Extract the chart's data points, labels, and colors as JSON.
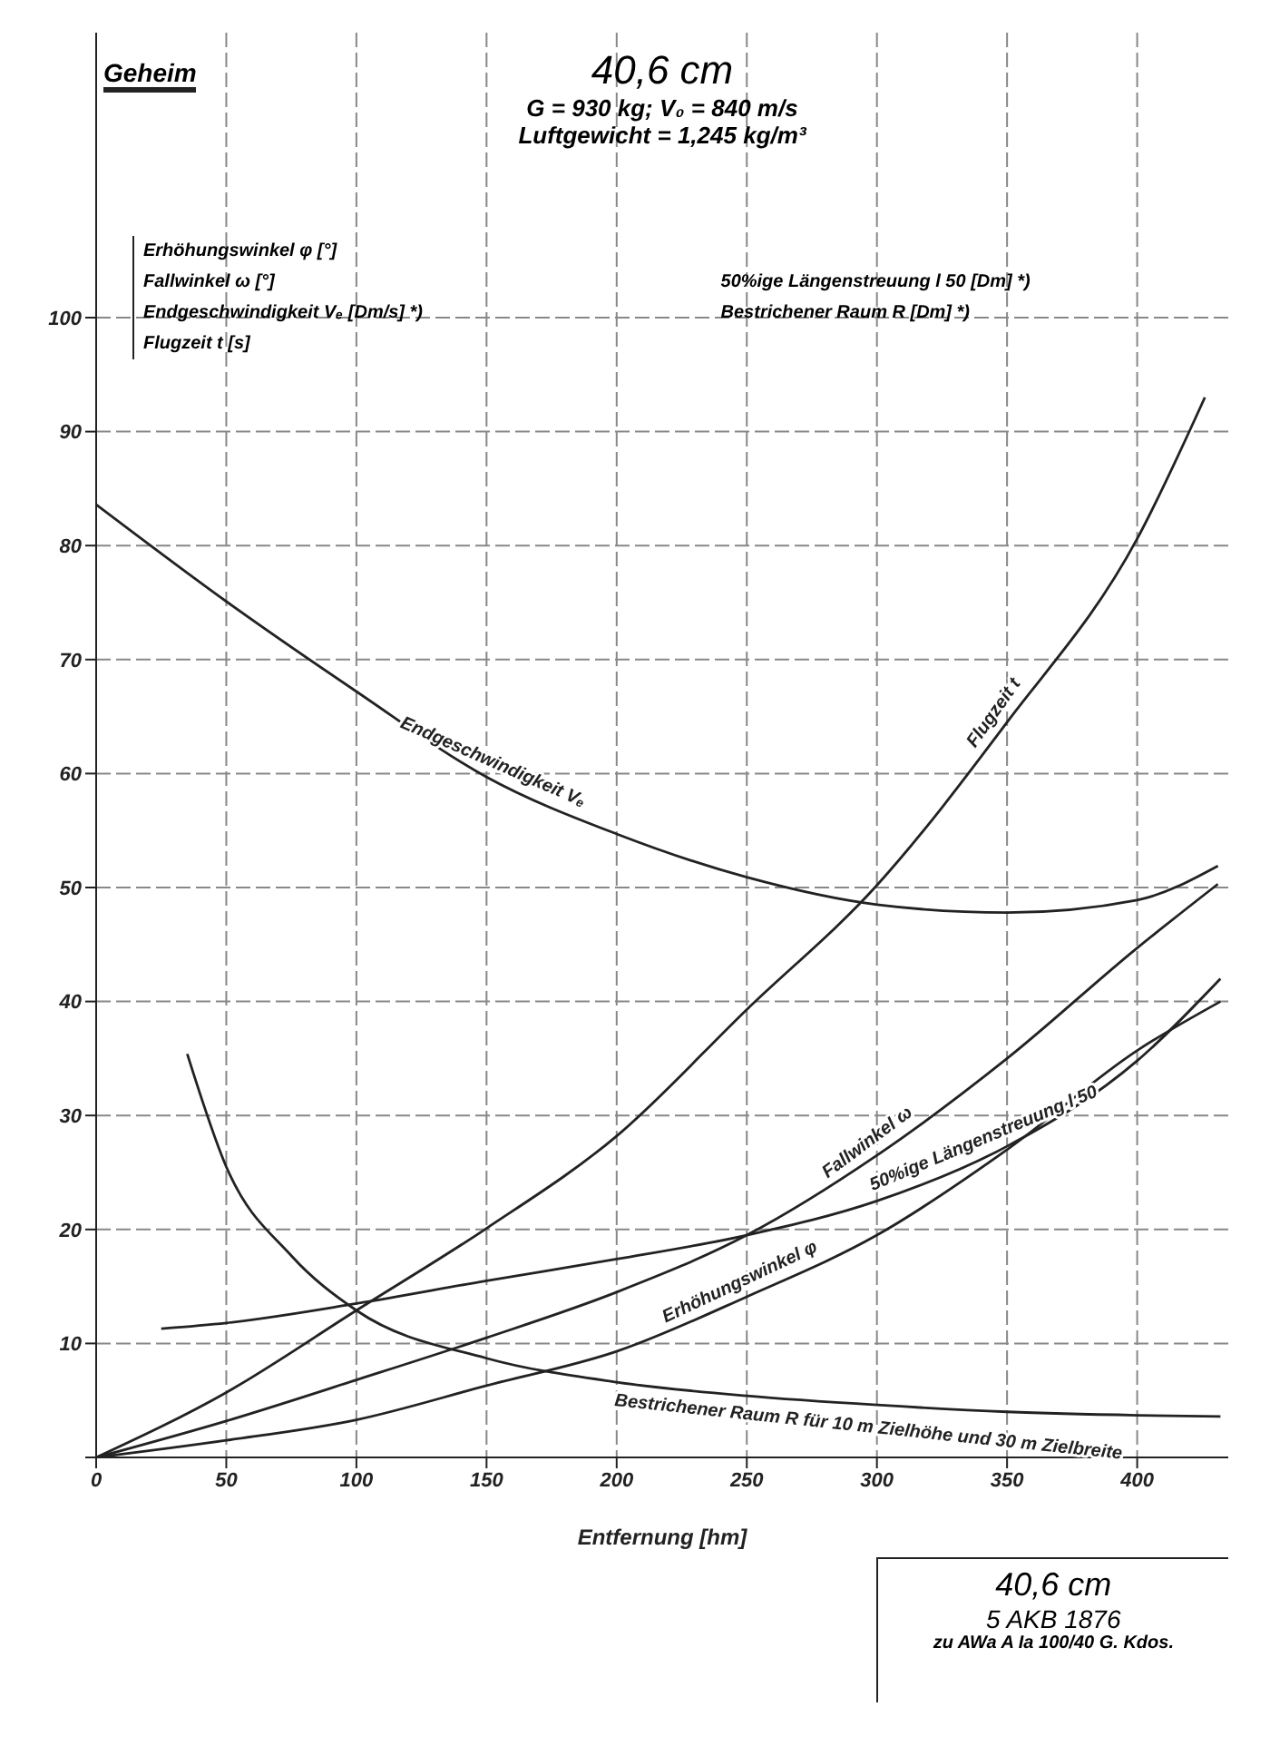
{
  "chart_data": {
    "type": "line",
    "title": "40,6 cm",
    "subtitle": "G = 930 kg; V₀ = 840 m/s\nLuftgewicht = 1,245 kg/m³",
    "xlabel": "Entfernung [hm]",
    "annotations": [
      "Geheim",
      "Erhöhungswinkel φ [°]",
      "Fallwinkel ω [°]",
      "Endgeschwindigkeit Vₑ [Dm/s] *)",
      "Flugzeit t [s]",
      "50%ige Längenstreuung l 50 [Dm] *)",
      "Bestrichener Raum R [Dm] *)",
      "40,6 cm",
      "5 AKB 1876",
      "zu AWa A Ia 100/40 G. Kdos."
    ],
    "xlim": [
      0,
      435
    ],
    "xticks": [
      0,
      50,
      100,
      150,
      200,
      250,
      300,
      350,
      400
    ],
    "ylim": [
      0,
      125
    ],
    "yticks": [
      {
        "value": 0,
        "label": null
      },
      10,
      20,
      30,
      40,
      50,
      60,
      70,
      80,
      90,
      100
    ],
    "grid": true,
    "legend": false,
    "marker": "none",
    "line_style": "solid",
    "series": [
      {
        "name": "Endgeschwindigkeit Vₑ",
        "color": "#222222",
        "x": [
          0,
          50,
          100,
          150,
          200,
          250,
          300,
          350,
          400,
          431
        ],
        "values": [
          83.6,
          75.1,
          67.2,
          59.7,
          54.7,
          50.9,
          48.5,
          47.8,
          48.9,
          51.9
        ]
      },
      {
        "name": "Flugzeit t",
        "color": "#222222",
        "x": [
          0,
          50,
          100,
          150,
          200,
          250,
          300,
          350,
          400,
          426
        ],
        "values": [
          0,
          5.7,
          12.9,
          20.1,
          28.2,
          39.3,
          50.2,
          64.5,
          80.6,
          93
        ]
      },
      {
        "name": "Fallwinkel ω",
        "color": "#222222",
        "x": [
          0,
          50,
          100,
          150,
          200,
          250,
          300,
          350,
          400,
          431
        ],
        "values": [
          0,
          3.2,
          6.8,
          10.5,
          14.5,
          19.5,
          26.5,
          35,
          44.7,
          50.3
        ]
      },
      {
        "name": "50%ige Längenstreuung l 50",
        "color": "#222222",
        "x": [
          25,
          50,
          100,
          150,
          200,
          250,
          300,
          350,
          400,
          432
        ],
        "values": [
          11.3,
          11.8,
          13.5,
          15.5,
          17.4,
          19.5,
          22.5,
          27.3,
          34.8,
          42
        ]
      },
      {
        "name": "Erhöhungswinkel φ",
        "color": "#222222",
        "x": [
          0,
          50,
          100,
          150,
          200,
          250,
          300,
          350,
          400,
          432
        ],
        "values": [
          0,
          1.5,
          3.3,
          6.3,
          9.3,
          14.1,
          19.5,
          27,
          35.7,
          40
        ]
      },
      {
        "name": "Bestrichener Raum R für 10 m Zielhöhe und 30 m Zielbreite",
        "color": "#222222",
        "x": [
          35,
          50,
          75,
          100,
          150,
          200,
          250,
          300,
          350,
          400,
          432
        ],
        "values": [
          35.4,
          25.5,
          17.7,
          12.9,
          8.7,
          6.6,
          5.4,
          4.6,
          4,
          3.7,
          3.6
        ]
      }
    ]
  }
}
